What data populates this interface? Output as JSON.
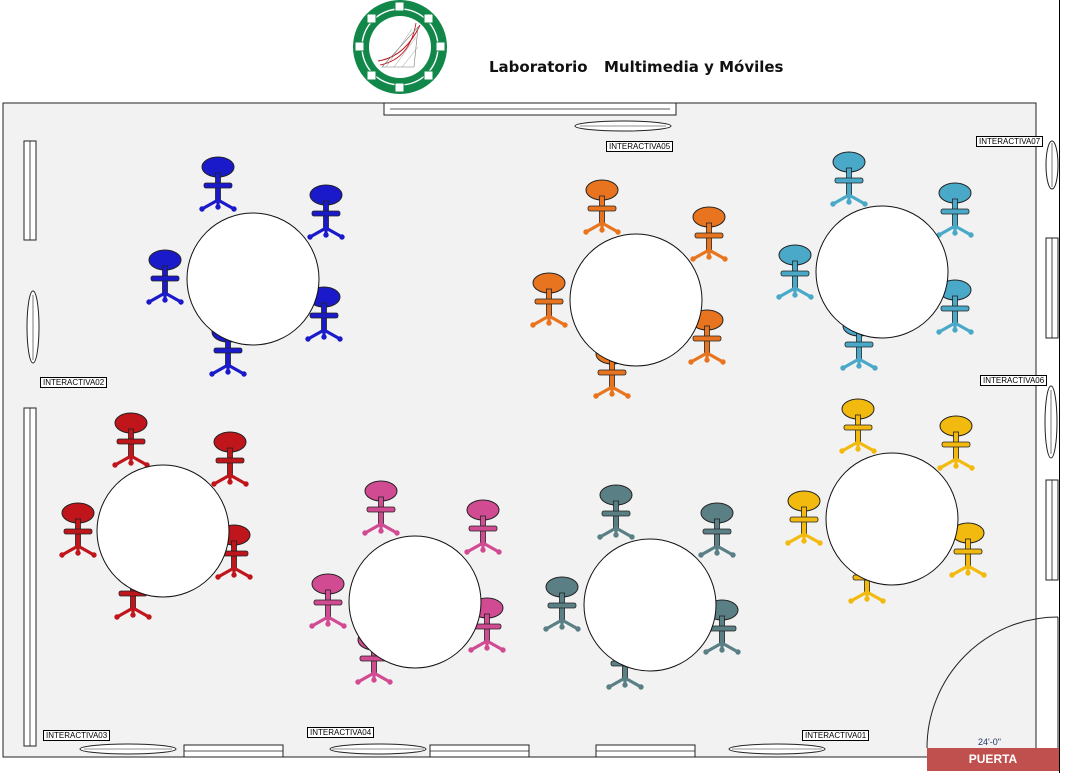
{
  "header": {
    "title_left": "Laboratorio",
    "title_right": "Multimedia y Móviles",
    "logo_icon": "network-globe-logo-icon"
  },
  "interactive_boards": [
    {
      "id": "INTERACTIVA01"
    },
    {
      "id": "INTERACTIVA02"
    },
    {
      "id": "INTERACTIVA03"
    },
    {
      "id": "INTERACTIVA04"
    },
    {
      "id": "INTERACTIVA05"
    },
    {
      "id": "INTERACTIVA06"
    },
    {
      "id": "INTERACTIVA07"
    }
  ],
  "door": {
    "label": "PUERTA",
    "dimension": "24'-0\""
  },
  "tables": [
    {
      "name": "table-blue",
      "color": "#1a1acb",
      "chairs": 5
    },
    {
      "name": "table-orange",
      "color": "#e8741f",
      "chairs": 5
    },
    {
      "name": "table-cyan",
      "color": "#4aa8c8",
      "chairs": 6
    },
    {
      "name": "table-red",
      "color": "#c0151b",
      "chairs": 5
    },
    {
      "name": "table-pink",
      "color": "#d14b92",
      "chairs": 5
    },
    {
      "name": "table-slate",
      "color": "#5a7f85",
      "chairs": 5
    },
    {
      "name": "table-yellow",
      "color": "#f2b90f",
      "chairs": 6
    }
  ],
  "colors": {
    "floor": "#f2f2f2",
    "logo_green": "#12874a",
    "door_label_bg": "#c0504d"
  }
}
